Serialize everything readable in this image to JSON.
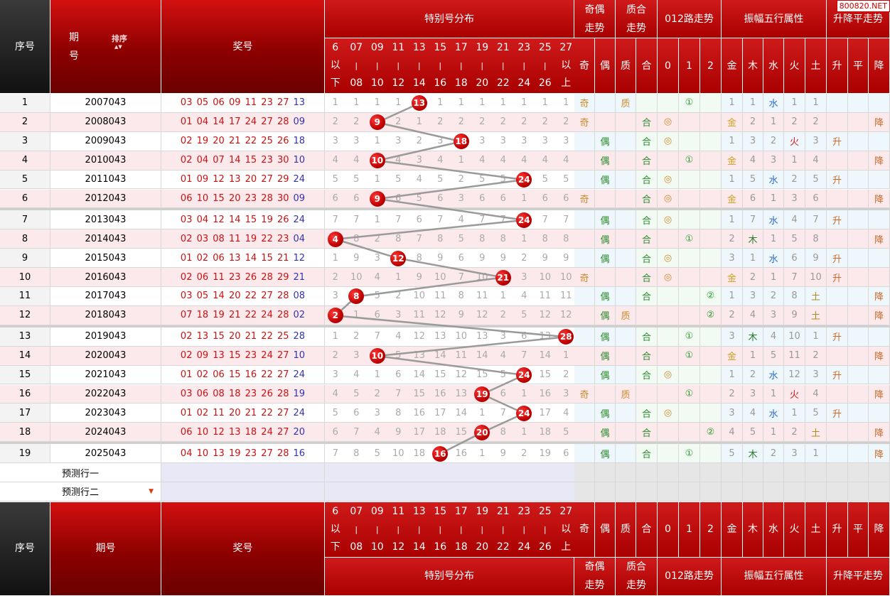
{
  "watermark": "800820.NET",
  "headers": {
    "seq": "序号",
    "period_top": "期",
    "period_bottom": "号",
    "period_full": "期号",
    "sort": "排序",
    "award": "奖号",
    "special_dist": "特别号分布",
    "odd_even_trend": "奇偶走势",
    "prime_comp_trend": "质合走势",
    "road012_trend": "012路走势",
    "amp_wuxing": "振幅五行属性",
    "rise_fall_trend": "升降平走势",
    "ranges": [
      "6以下",
      "07|08",
      "09|10",
      "11|12",
      "13|14",
      "15|16",
      "17|18",
      "19|20",
      "21|22",
      "23|24",
      "25|26",
      "27以上"
    ],
    "sub_labels": [
      "奇",
      "偶",
      "质",
      "合",
      "0",
      "1",
      "2",
      "金",
      "木",
      "水",
      "火",
      "土",
      "升",
      "平",
      "降"
    ]
  },
  "colors": {
    "accent": "#b30000",
    "ball": "#cc0000",
    "line": "#9a9a9a"
  },
  "rows": [
    {
      "seq": "1",
      "period": "2007043",
      "red": "03 05 06 09 11 23 27",
      "blue": "13",
      "dist": [
        "1",
        "1",
        "1",
        "1",
        "13",
        "1",
        "1",
        "1",
        "1",
        "1",
        "1",
        "1"
      ],
      "hit": 4,
      "oe": [
        "奇",
        ""
      ],
      "pc": [
        "质",
        ""
      ],
      "road": [
        "",
        "①",
        ""
      ],
      "wx": [
        "1",
        "1",
        "水",
        "1",
        "1"
      ],
      "rf": [
        "",
        "",
        ""
      ]
    },
    {
      "seq": "2",
      "period": "2008043",
      "red": "01 04 14 17 24 27 28",
      "blue": "09",
      "dist": [
        "2",
        "2",
        "9",
        "2",
        "1",
        "2",
        "2",
        "2",
        "2",
        "2",
        "2",
        "2"
      ],
      "hit": 2,
      "oe": [
        "奇",
        ""
      ],
      "pc": [
        "",
        "合"
      ],
      "road": [
        "◎",
        "",
        ""
      ],
      "wx": [
        "金",
        "2",
        "1",
        "2",
        "2"
      ],
      "rf": [
        "",
        "",
        "降"
      ]
    },
    {
      "seq": "3",
      "period": "2009043",
      "red": "02 19 20 21 22 25 26",
      "blue": "18",
      "dist": [
        "3",
        "3",
        "1",
        "3",
        "2",
        "3",
        "18",
        "3",
        "3",
        "3",
        "3",
        "3"
      ],
      "hit": 6,
      "oe": [
        "",
        "偶"
      ],
      "pc": [
        "",
        "合"
      ],
      "road": [
        "◎",
        "",
        ""
      ],
      "wx": [
        "1",
        "3",
        "2",
        "火",
        "3"
      ],
      "rf": [
        "升",
        "",
        ""
      ]
    },
    {
      "seq": "4",
      "period": "2010043",
      "red": "02 04 07 14 15 23 30",
      "blue": "10",
      "dist": [
        "4",
        "4",
        "10",
        "4",
        "3",
        "4",
        "1",
        "4",
        "4",
        "4",
        "4",
        "4"
      ],
      "hit": 2,
      "oe": [
        "",
        "偶"
      ],
      "pc": [
        "",
        "合"
      ],
      "road": [
        "",
        "①",
        ""
      ],
      "wx": [
        "金",
        "4",
        "3",
        "1",
        "4"
      ],
      "rf": [
        "",
        "",
        "降"
      ]
    },
    {
      "seq": "5",
      "period": "2011043",
      "red": "01 09 12 13 20 27 29",
      "blue": "24",
      "dist": [
        "5",
        "5",
        "1",
        "5",
        "4",
        "5",
        "2",
        "5",
        "5",
        "24",
        "5",
        "5"
      ],
      "hit": 9,
      "oe": [
        "",
        "偶"
      ],
      "pc": [
        "",
        "合"
      ],
      "road": [
        "◎",
        "",
        ""
      ],
      "wx": [
        "1",
        "5",
        "水",
        "2",
        "5"
      ],
      "rf": [
        "升",
        "",
        ""
      ]
    },
    {
      "seq": "6",
      "period": "2012043",
      "red": "06 10 15 20 23 28 30",
      "blue": "09",
      "dist": [
        "6",
        "6",
        "9",
        "6",
        "5",
        "6",
        "3",
        "6",
        "6",
        "1",
        "6",
        "6"
      ],
      "hit": 2,
      "oe": [
        "奇",
        ""
      ],
      "pc": [
        "",
        "合"
      ],
      "road": [
        "◎",
        "",
        ""
      ],
      "wx": [
        "金",
        "6",
        "1",
        "3",
        "6"
      ],
      "rf": [
        "",
        "",
        "降"
      ]
    },
    {
      "seq": "7",
      "period": "2013043",
      "red": "03 04 12 14 15 19 26",
      "blue": "24",
      "dist": [
        "7",
        "7",
        "1",
        "7",
        "6",
        "7",
        "4",
        "7",
        "7",
        "24",
        "7",
        "7"
      ],
      "hit": 9,
      "oe": [
        "",
        "偶"
      ],
      "pc": [
        "",
        "合"
      ],
      "road": [
        "◎",
        "",
        ""
      ],
      "wx": [
        "1",
        "7",
        "水",
        "4",
        "7"
      ],
      "rf": [
        "升",
        "",
        ""
      ]
    },
    {
      "seq": "8",
      "period": "2014043",
      "red": "02 03 08 11 19 22 23",
      "blue": "04",
      "dist": [
        "4",
        "8",
        "2",
        "8",
        "7",
        "8",
        "5",
        "8",
        "8",
        "1",
        "8",
        "8"
      ],
      "hit": 0,
      "oe": [
        "",
        "偶"
      ],
      "pc": [
        "",
        "合"
      ],
      "road": [
        "",
        "①",
        ""
      ],
      "wx": [
        "2",
        "木",
        "1",
        "5",
        "8"
      ],
      "rf": [
        "",
        "",
        "降"
      ]
    },
    {
      "seq": "9",
      "period": "2015043",
      "red": "01 02 06 13 14 15 21",
      "blue": "12",
      "dist": [
        "1",
        "9",
        "3",
        "12",
        "8",
        "9",
        "6",
        "9",
        "9",
        "2",
        "9",
        "9"
      ],
      "hit": 3,
      "oe": [
        "",
        "偶"
      ],
      "pc": [
        "",
        "合"
      ],
      "road": [
        "◎",
        "",
        ""
      ],
      "wx": [
        "3",
        "1",
        "水",
        "6",
        "9"
      ],
      "rf": [
        "升",
        "",
        ""
      ]
    },
    {
      "seq": "10",
      "period": "2016043",
      "red": "02 06 11 23 26 28 29",
      "blue": "21",
      "dist": [
        "2",
        "10",
        "4",
        "1",
        "9",
        "10",
        "7",
        "10",
        "21",
        "3",
        "10",
        "10"
      ],
      "hit": 8,
      "oe": [
        "奇",
        ""
      ],
      "pc": [
        "",
        "合"
      ],
      "road": [
        "◎",
        "",
        ""
      ],
      "wx": [
        "金",
        "2",
        "1",
        "7",
        "10"
      ],
      "rf": [
        "升",
        "",
        ""
      ]
    },
    {
      "seq": "11",
      "period": "2017043",
      "red": "03 05 14 20 22 27 28",
      "blue": "08",
      "dist": [
        "3",
        "8",
        "5",
        "2",
        "10",
        "11",
        "8",
        "11",
        "1",
        "4",
        "11",
        "11"
      ],
      "hit": 1,
      "oe": [
        "",
        "偶"
      ],
      "pc": [
        "",
        "合"
      ],
      "road": [
        "",
        "",
        "②"
      ],
      "wx": [
        "1",
        "3",
        "2",
        "8",
        "土"
      ],
      "rf": [
        "",
        "",
        "降"
      ]
    },
    {
      "seq": "12",
      "period": "2018043",
      "red": "07 18 19 21 22 24 28",
      "blue": "02",
      "dist": [
        "2",
        "1",
        "6",
        "3",
        "11",
        "12",
        "9",
        "12",
        "2",
        "5",
        "12",
        "12"
      ],
      "hit": 0,
      "oe": [
        "",
        "偶"
      ],
      "pc": [
        "质",
        ""
      ],
      "road": [
        "",
        "",
        "②"
      ],
      "wx": [
        "2",
        "4",
        "3",
        "9",
        "土"
      ],
      "rf": [
        "",
        "",
        "降"
      ]
    },
    {
      "seq": "13",
      "period": "2019043",
      "red": "02 13 15 20 21 22 25",
      "blue": "28",
      "dist": [
        "1",
        "2",
        "7",
        "4",
        "12",
        "13",
        "10",
        "13",
        "3",
        "6",
        "13",
        "28"
      ],
      "hit": 11,
      "oe": [
        "",
        "偶"
      ],
      "pc": [
        "",
        "合"
      ],
      "road": [
        "",
        "①",
        ""
      ],
      "wx": [
        "3",
        "木",
        "4",
        "10",
        "1"
      ],
      "rf": [
        "升",
        "",
        ""
      ]
    },
    {
      "seq": "14",
      "period": "2020043",
      "red": "02 09 13 15 23 24 27",
      "blue": "10",
      "dist": [
        "2",
        "3",
        "10",
        "5",
        "13",
        "14",
        "11",
        "14",
        "4",
        "7",
        "14",
        "1"
      ],
      "hit": 2,
      "oe": [
        "",
        "偶"
      ],
      "pc": [
        "",
        "合"
      ],
      "road": [
        "",
        "①",
        ""
      ],
      "wx": [
        "金",
        "1",
        "5",
        "11",
        "2"
      ],
      "rf": [
        "",
        "",
        "降"
      ]
    },
    {
      "seq": "15",
      "period": "2021043",
      "red": "01 02 06 15 16 22 27",
      "blue": "24",
      "dist": [
        "3",
        "4",
        "1",
        "6",
        "14",
        "15",
        "12",
        "15",
        "5",
        "24",
        "15",
        "2"
      ],
      "hit": 9,
      "oe": [
        "",
        "偶"
      ],
      "pc": [
        "",
        "合"
      ],
      "road": [
        "◎",
        "",
        ""
      ],
      "wx": [
        "1",
        "2",
        "水",
        "12",
        "3"
      ],
      "rf": [
        "升",
        "",
        ""
      ]
    },
    {
      "seq": "16",
      "period": "2022043",
      "red": "03 06 08 18 23 26 28",
      "blue": "19",
      "dist": [
        "4",
        "5",
        "2",
        "7",
        "15",
        "16",
        "13",
        "19",
        "6",
        "1",
        "16",
        "3"
      ],
      "hit": 7,
      "oe": [
        "奇",
        ""
      ],
      "pc": [
        "质",
        ""
      ],
      "road": [
        "",
        "①",
        ""
      ],
      "wx": [
        "2",
        "3",
        "1",
        "火",
        "4"
      ],
      "rf": [
        "",
        "",
        "降"
      ]
    },
    {
      "seq": "17",
      "period": "2023043",
      "red": "01 02 11 20 21 22 27",
      "blue": "24",
      "dist": [
        "5",
        "6",
        "3",
        "8",
        "16",
        "17",
        "14",
        "1",
        "7",
        "24",
        "17",
        "4"
      ],
      "hit": 9,
      "oe": [
        "",
        "偶"
      ],
      "pc": [
        "",
        "合"
      ],
      "road": [
        "◎",
        "",
        ""
      ],
      "wx": [
        "3",
        "4",
        "水",
        "1",
        "5"
      ],
      "rf": [
        "升",
        "",
        ""
      ]
    },
    {
      "seq": "18",
      "period": "2024043",
      "red": "06 10 12 13 18 24 27",
      "blue": "20",
      "dist": [
        "6",
        "7",
        "4",
        "9",
        "17",
        "18",
        "15",
        "20",
        "8",
        "1",
        "18",
        "5"
      ],
      "hit": 7,
      "oe": [
        "",
        "偶"
      ],
      "pc": [
        "",
        "合"
      ],
      "road": [
        "",
        "",
        "②"
      ],
      "wx": [
        "4",
        "5",
        "1",
        "2",
        "土"
      ],
      "rf": [
        "",
        "",
        "降"
      ]
    },
    {
      "seq": "19",
      "period": "2025043",
      "red": "04 10 13 19 23 27 28",
      "blue": "16",
      "dist": [
        "7",
        "8",
        "5",
        "10",
        "18",
        "16",
        "16",
        "1",
        "9",
        "2",
        "19",
        "6"
      ],
      "hit": 5,
      "oe": [
        "",
        "偶"
      ],
      "pc": [
        "",
        "合"
      ],
      "road": [
        "",
        "①",
        ""
      ],
      "wx": [
        "5",
        "木",
        "2",
        "3",
        "1"
      ],
      "rf": [
        "",
        "",
        "降"
      ]
    }
  ],
  "predict": [
    "预测行一",
    "预测行二"
  ]
}
